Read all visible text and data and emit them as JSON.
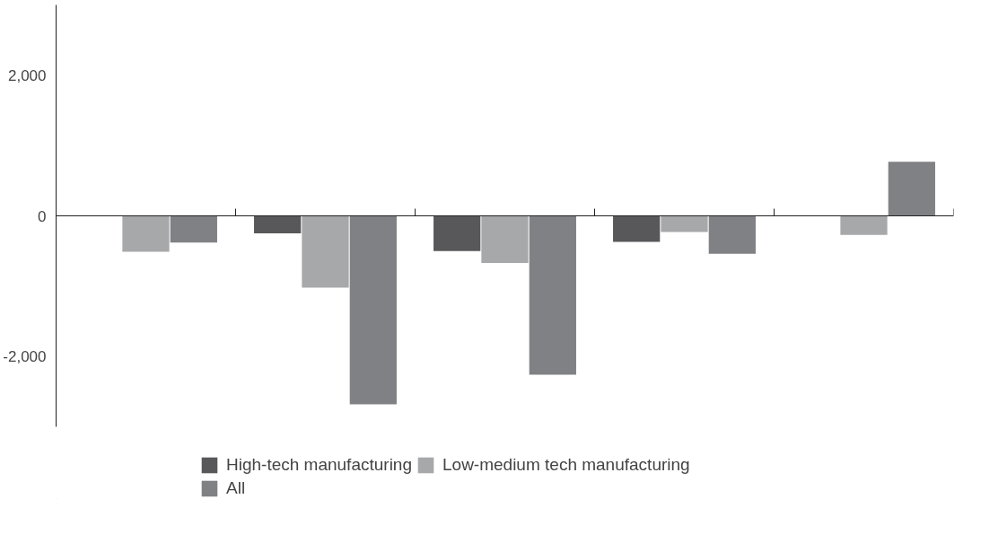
{
  "chart_data": {
    "type": "bar",
    "categories": [
      null,
      null,
      null,
      null,
      null
    ],
    "series": [
      {
        "name": "High-tech manufacturing",
        "color": "#58585a",
        "values": [
          0,
          -250,
          -500,
          -370,
          0
        ]
      },
      {
        "name": "Low-medium tech manufacturing",
        "color": "#a7a8aa",
        "values": [
          -510,
          -1020,
          -670,
          -230,
          -270
        ]
      },
      {
        "name": "All",
        "color": "#808184",
        "values": [
          -380,
          -2680,
          -2260,
          -540,
          770
        ]
      }
    ],
    "ylim": [
      -3000,
      3000
    ],
    "yticks": [
      {
        "value": -2000,
        "label": "-2,000"
      },
      0,
      {
        "value": 2000,
        "label": "2,000"
      }
    ],
    "legend": "bottom",
    "tick_labels": "y"
  }
}
